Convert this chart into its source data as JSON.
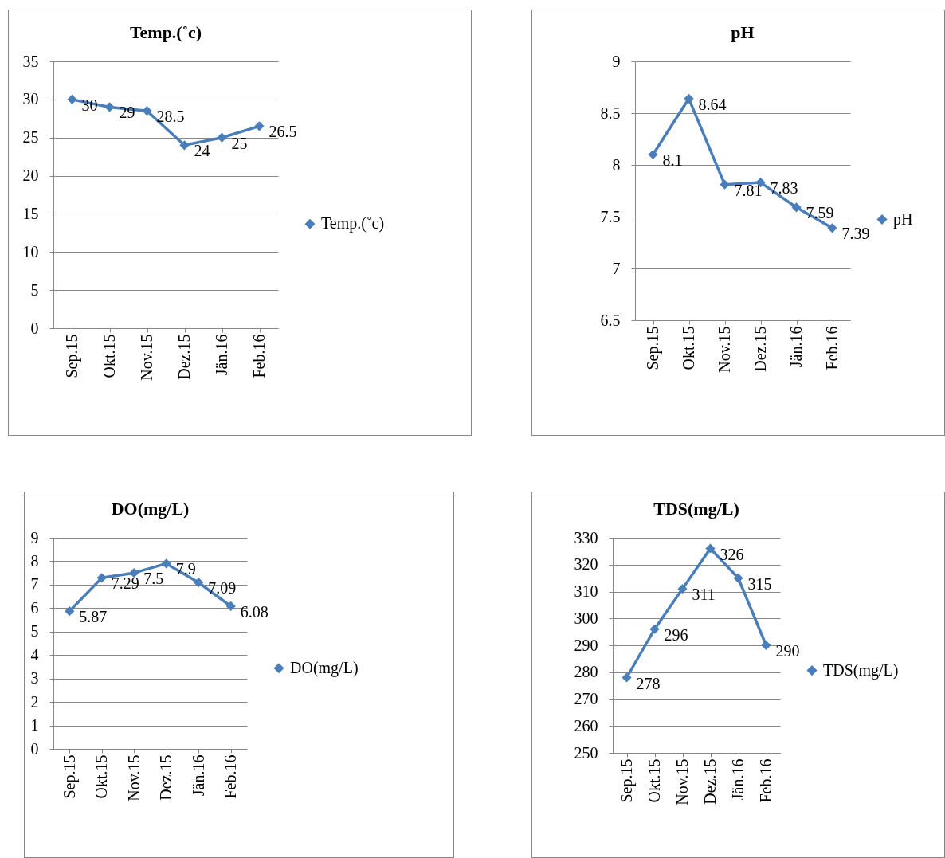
{
  "chart_data": [
    {
      "type": "line",
      "title": "Temp.(˚c)",
      "categories": [
        "Sep.15",
        "Okt.15",
        "Nov.15",
        "Dez.15",
        "Jän.16",
        "Feb.16"
      ],
      "series": [
        {
          "name": "Temp.(˚c)",
          "color": "#4a7ebb",
          "values": [
            30,
            29,
            28.5,
            24,
            25,
            26.5
          ]
        }
      ],
      "ylim": [
        0,
        35
      ],
      "yticks": [
        0,
        5,
        10,
        15,
        20,
        25,
        30,
        35
      ],
      "grid": "y",
      "legend": "right",
      "marker": "diamond",
      "line_style": "solid",
      "data_labels": true
    },
    {
      "type": "line",
      "title": "pH",
      "categories": [
        "Sep.15",
        "Okt.15",
        "Nov.15",
        "Dez.15",
        "Jän.16",
        "Feb.16"
      ],
      "series": [
        {
          "name": "pH",
          "color": "#4a7ebb",
          "values": [
            8.1,
            8.64,
            7.81,
            7.83,
            7.59,
            7.39
          ]
        }
      ],
      "ylim": [
        6.5,
        9
      ],
      "yticks": [
        6.5,
        7,
        7.5,
        8,
        8.5,
        9
      ],
      "grid": "y",
      "legend": "right",
      "marker": "diamond",
      "line_style": "solid",
      "data_labels": true
    },
    {
      "type": "line",
      "title": "DO(mg/L)",
      "categories": [
        "Sep.15",
        "Okt.15",
        "Nov.15",
        "Dez.15",
        "Jän.16",
        "Feb.16"
      ],
      "series": [
        {
          "name": "DO(mg/L)",
          "color": "#4a7ebb",
          "values": [
            5.87,
            7.29,
            7.5,
            7.9,
            7.09,
            6.08
          ]
        }
      ],
      "ylim": [
        0,
        9
      ],
      "yticks": [
        0,
        1,
        2,
        3,
        4,
        5,
        6,
        7,
        8,
        9
      ],
      "grid": "y",
      "legend": "right",
      "marker": "diamond",
      "line_style": "solid",
      "data_labels": true
    },
    {
      "type": "line",
      "title": "TDS(mg/L)",
      "categories": [
        "Sep.15",
        "Okt.15",
        "Nov.15",
        "Dez.15",
        "Jän.16",
        "Feb.16"
      ],
      "series": [
        {
          "name": "TDS(mg/L)",
          "color": "#4a7ebb",
          "values": [
            278,
            296,
            311,
            326,
            315,
            290
          ]
        }
      ],
      "ylim": [
        250,
        330
      ],
      "yticks": [
        250,
        260,
        270,
        280,
        290,
        300,
        310,
        320,
        330
      ],
      "grid": "y",
      "legend": "right",
      "marker": "diamond",
      "line_style": "solid",
      "data_labels": true
    }
  ]
}
